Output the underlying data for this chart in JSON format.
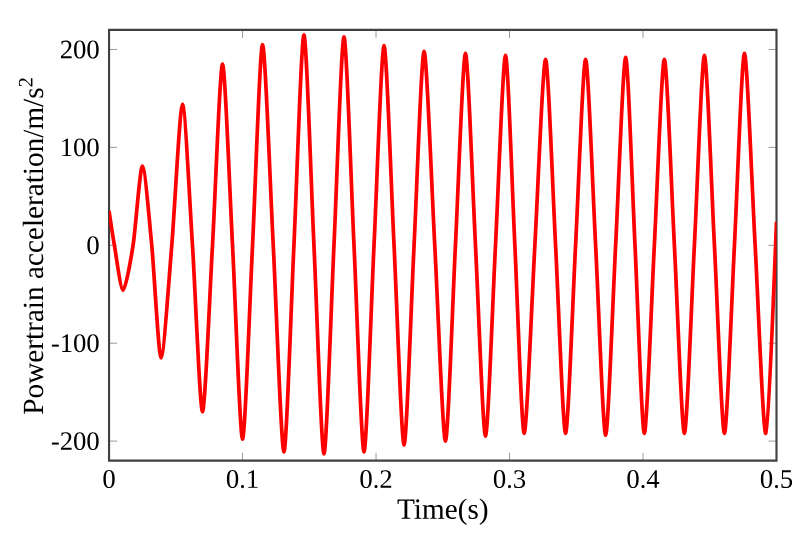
{
  "chart_data": {
    "type": "line",
    "xlabel": "Time(s)",
    "ylabel": "Powertrain acceleration/m/s$^{2}$",
    "xlim": [
      0,
      0.5
    ],
    "ylim": [
      -220,
      220
    ],
    "xticks": [
      0,
      0.1,
      0.2,
      0.3,
      0.4,
      0.5
    ],
    "yticks": [
      -200,
      -100,
      0,
      100,
      200
    ],
    "grid": false,
    "marker": "none",
    "line_style": "solid",
    "series": [
      {
        "color": "#ff0000",
        "x": [
          0,
          0.004,
          0.0105,
          0.018,
          0.025,
          0.032,
          0.039,
          0.047,
          0.055,
          0.0625,
          0.07,
          0.0775,
          0.085,
          0.0925,
          0.1,
          0.1075,
          0.115,
          0.123,
          0.131,
          0.1385,
          0.146,
          0.1535,
          0.161,
          0.1685,
          0.176,
          0.1835,
          0.191,
          0.1985,
          0.206,
          0.2135,
          0.221,
          0.2285,
          0.236,
          0.244,
          0.252,
          0.2595,
          0.267,
          0.2745,
          0.282,
          0.2895,
          0.297,
          0.304,
          0.311,
          0.319,
          0.327,
          0.3345,
          0.342,
          0.3495,
          0.357,
          0.3645,
          0.372,
          0.3795,
          0.387,
          0.394,
          0.401,
          0.4085,
          0.416,
          0.4235,
          0.431,
          0.4385,
          0.446,
          0.4535,
          0.461,
          0.4685,
          0.476,
          0.484,
          0.492,
          0.5
        ],
        "values": [
          35,
          0,
          -46,
          0,
          81,
          0,
          -115,
          0,
          144,
          0,
          -170,
          0,
          185,
          0,
          -198,
          0,
          205,
          0,
          -211,
          0,
          215,
          0,
          -213,
          0,
          213,
          0,
          -211,
          0,
          204,
          0,
          -204,
          0,
          198,
          0,
          -200,
          0,
          196,
          0,
          -195,
          0,
          194,
          0,
          -192,
          0,
          190,
          0,
          -192,
          0,
          190,
          0,
          -194,
          0,
          192,
          0,
          -192,
          0,
          190,
          0,
          -192,
          0,
          194,
          0,
          -192,
          0,
          196,
          0,
          -192,
          24
        ]
      }
    ]
  }
}
